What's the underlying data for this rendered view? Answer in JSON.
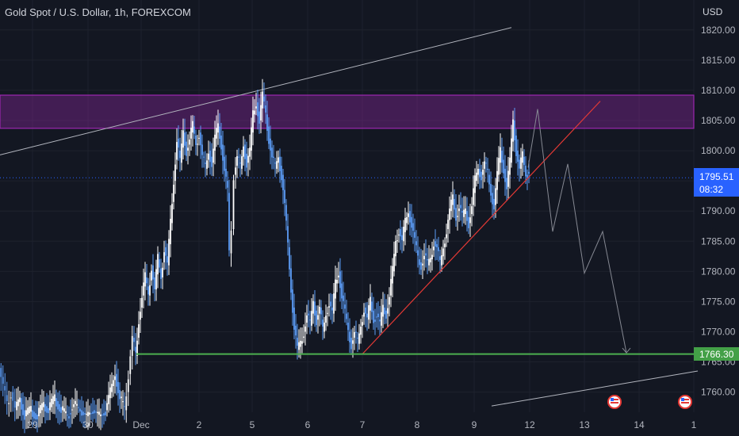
{
  "header": {
    "symbol_title": "Gold Spot / U.S. Dollar, 1h, FOREXCOM",
    "currency": "USD"
  },
  "price_tags": {
    "current_price": "1795.51",
    "countdown": "08:32",
    "support_price": "1766.30"
  },
  "colors": {
    "background": "#131722",
    "up_candle": "#ffffff",
    "down_candle": "#5b9cf6",
    "resistance_zone": "#9c27b0",
    "support_line": "#4caf50",
    "trend_line": "#e53935",
    "channel_line": "#b2b5be",
    "projection_line": "#868993",
    "current_price_tag": "#2962ff",
    "support_tag": "#43a047"
  },
  "chart_data": {
    "type": "candlestick",
    "title": "Gold Spot / U.S. Dollar, 1h, FOREXCOM",
    "y_unit": "USD",
    "y_ticks": [
      "1760.00",
      "1765.00",
      "1770.00",
      "1775.00",
      "1780.00",
      "1785.00",
      "1790.00",
      "1795.00",
      "1800.00",
      "1805.00",
      "1810.00",
      "1815.00",
      "1820.00"
    ],
    "x_ticks": [
      "29",
      "30",
      "Dec",
      "2",
      "5",
      "6",
      "7",
      "8",
      "9",
      "12",
      "13",
      "14",
      "1"
    ],
    "ylim": [
      1756,
      1823
    ],
    "current_price": 1795.51,
    "resistance_zone": [
      1803.7,
      1809.2
    ],
    "support_level": 1766.3,
    "series": [
      {
        "name": "",
        "close_path": [
          [
            0,
            1764
          ],
          [
            5,
            1761
          ],
          [
            10,
            1758
          ],
          [
            15,
            1760
          ],
          [
            20,
            1757
          ],
          [
            26,
            1759
          ],
          [
            32,
            1756
          ],
          [
            40,
            1757
          ],
          [
            48,
            1756
          ],
          [
            56,
            1758
          ],
          [
            62,
            1757
          ],
          [
            70,
            1759
          ],
          [
            78,
            1757
          ],
          [
            86,
            1756
          ],
          [
            94,
            1758
          ],
          [
            102,
            1757
          ],
          [
            110,
            1756
          ],
          [
            118,
            1757
          ],
          [
            126,
            1756
          ],
          [
            134,
            1757
          ],
          [
            140,
            1760
          ],
          [
            146,
            1763
          ],
          [
            152,
            1759
          ],
          [
            158,
            1757
          ],
          [
            163,
            1763
          ],
          [
            168,
            1769
          ],
          [
            172,
            1766
          ],
          [
            176,
            1772
          ],
          [
            180,
            1776
          ],
          [
            184,
            1779
          ],
          [
            188,
            1776
          ],
          [
            192,
            1781
          ],
          [
            196,
            1777
          ],
          [
            200,
            1782
          ],
          [
            204,
            1779
          ],
          [
            208,
            1784
          ],
          [
            212,
            1781
          ],
          [
            216,
            1788
          ],
          [
            220,
            1795
          ],
          [
            224,
            1802
          ],
          [
            228,
            1798
          ],
          [
            232,
            1803
          ],
          [
            236,
            1800
          ],
          [
            240,
            1802
          ],
          [
            244,
            1804
          ],
          [
            248,
            1801
          ],
          [
            252,
            1803
          ],
          [
            256,
            1799
          ],
          [
            260,
            1797
          ],
          [
            264,
            1800
          ],
          [
            268,
            1798
          ],
          [
            272,
            1802
          ],
          [
            276,
            1804
          ],
          [
            280,
            1801
          ],
          [
            284,
            1797
          ],
          [
            288,
            1793
          ],
          [
            290,
            1783
          ],
          [
            293,
            1787
          ],
          [
            296,
            1796
          ],
          [
            300,
            1799
          ],
          [
            304,
            1797
          ],
          [
            308,
            1801
          ],
          [
            312,
            1798
          ],
          [
            316,
            1800
          ],
          [
            320,
            1806
          ],
          [
            324,
            1808
          ],
          [
            328,
            1805
          ],
          [
            332,
            1809
          ],
          [
            336,
            1806
          ],
          [
            340,
            1802
          ],
          [
            344,
            1799
          ],
          [
            348,
            1797
          ],
          [
            352,
            1799
          ],
          [
            356,
            1796
          ],
          [
            360,
            1791
          ],
          [
            364,
            1784
          ],
          [
            368,
            1777
          ],
          [
            372,
            1771
          ],
          [
            376,
            1767
          ],
          [
            380,
            1768
          ],
          [
            384,
            1770
          ],
          [
            388,
            1773
          ],
          [
            392,
            1771
          ],
          [
            396,
            1775
          ],
          [
            400,
            1772
          ],
          [
            404,
            1774
          ],
          [
            408,
            1770
          ],
          [
            412,
            1773
          ],
          [
            416,
            1775
          ],
          [
            420,
            1773
          ],
          [
            424,
            1778
          ],
          [
            428,
            1780
          ],
          [
            432,
            1776
          ],
          [
            436,
            1773
          ],
          [
            440,
            1770
          ],
          [
            444,
            1768
          ],
          [
            448,
            1770
          ],
          [
            452,
            1768
          ],
          [
            456,
            1771
          ],
          [
            460,
            1774
          ],
          [
            464,
            1772
          ],
          [
            468,
            1775
          ],
          [
            472,
            1772
          ],
          [
            476,
            1773
          ],
          [
            480,
            1771
          ],
          [
            484,
            1774
          ],
          [
            488,
            1773
          ],
          [
            492,
            1776
          ],
          [
            496,
            1780
          ],
          [
            500,
            1785
          ],
          [
            504,
            1787
          ],
          [
            508,
            1785
          ],
          [
            512,
            1788
          ],
          [
            516,
            1790
          ],
          [
            520,
            1788
          ],
          [
            524,
            1785
          ],
          [
            528,
            1782
          ],
          [
            532,
            1781
          ],
          [
            536,
            1783
          ],
          [
            540,
            1781
          ],
          [
            544,
            1782
          ],
          [
            548,
            1785
          ],
          [
            552,
            1784
          ],
          [
            556,
            1781
          ],
          [
            560,
            1784
          ],
          [
            564,
            1787
          ],
          [
            568,
            1790
          ],
          [
            572,
            1792
          ],
          [
            576,
            1789
          ],
          [
            580,
            1791
          ],
          [
            584,
            1789
          ],
          [
            588,
            1790
          ],
          [
            592,
            1788
          ],
          [
            596,
            1791
          ],
          [
            600,
            1795
          ],
          [
            604,
            1797
          ],
          [
            608,
            1796
          ],
          [
            612,
            1798
          ],
          [
            616,
            1796
          ],
          [
            620,
            1793
          ],
          [
            624,
            1791
          ],
          [
            628,
            1796
          ],
          [
            632,
            1800
          ],
          [
            636,
            1797
          ],
          [
            640,
            1794
          ],
          [
            644,
            1798
          ],
          [
            648,
            1805
          ],
          [
            652,
            1800
          ],
          [
            656,
            1797
          ],
          [
            660,
            1799
          ],
          [
            664,
            1796
          ],
          [
            668,
            1797
          ]
        ]
      }
    ],
    "drawings": {
      "upper_channel_line": [
        [
          0,
          1799.3
        ],
        [
          645,
          1820.4
        ]
      ],
      "lower_channel_line": [
        [
          620,
          1757.7
        ],
        [
          880,
          1763.5
        ]
      ],
      "rising_trend_line": [
        [
          457,
          1766.3
        ],
        [
          757,
          1808.2
        ]
      ],
      "projection_path": [
        [
          666,
          1797.2
        ],
        [
          678,
          1806.9
        ],
        [
          697,
          1786.6
        ],
        [
          716,
          1797.8
        ],
        [
          737,
          1779.7
        ],
        [
          760,
          1786.6
        ],
        [
          790,
          1766.5
        ]
      ]
    }
  }
}
